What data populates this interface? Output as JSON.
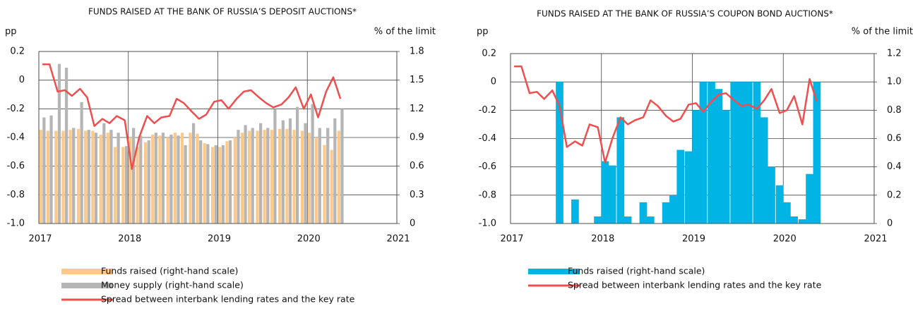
{
  "chart_data": [
    {
      "type": "combo",
      "title": "FUNDS RAISED AT THE BANK OF RUSSIA’S DEPOSIT AUCTIONS*",
      "y_label": "pp",
      "y2_label": "% of the limit",
      "x": [
        2017.04,
        2017.12,
        2017.21,
        2017.29,
        2017.37,
        2017.46,
        2017.54,
        2017.62,
        2017.71,
        2017.79,
        2017.87,
        2017.96,
        2018.04,
        2018.12,
        2018.21,
        2018.29,
        2018.37,
        2018.46,
        2018.54,
        2018.62,
        2018.71,
        2018.79,
        2018.87,
        2018.96,
        2019.04,
        2019.12,
        2019.21,
        2019.29,
        2019.37,
        2019.46,
        2019.54,
        2019.62,
        2019.71,
        2019.79,
        2019.87,
        2019.96,
        2020.04,
        2020.12,
        2020.21,
        2020.29,
        2020.37
      ],
      "xlim": [
        2017,
        2021
      ],
      "xticks": [
        2017,
        2018,
        2019,
        2020,
        2021
      ],
      "ylim": [
        -1,
        0.2
      ],
      "yticks": [
        0.2,
        0,
        -0.2,
        -0.4,
        -0.6,
        -0.8,
        {
          "value": -1,
          "label": "-1.0"
        }
      ],
      "y2lim": [
        0,
        1.8
      ],
      "y2ticks": [
        1.8,
        1.5,
        1.2,
        0.9,
        0.6,
        0.3,
        0
      ],
      "grid": true,
      "series": [
        {
          "name": "Funds raised (right-hand scale)",
          "type": "bar",
          "axis": "y2",
          "color": "#fdc98a",
          "values": [
            0.98,
            0.97,
            0.97,
            0.97,
            0.98,
            0.99,
            0.97,
            0.97,
            0.93,
            0.95,
            0.8,
            0.8,
            0.9,
            0.8,
            0.85,
            0.93,
            0.92,
            0.9,
            0.95,
            0.95,
            0.95,
            0.94,
            0.84,
            0.8,
            0.8,
            0.86,
            0.9,
            0.95,
            0.97,
            0.97,
            0.98,
            0.98,
            0.99,
            0.99,
            0.98,
            0.97,
            0.95,
            0.9,
            0.82,
            0.77,
            0.97
          ]
        },
        {
          "name": "Money supply (right-hand scale)",
          "type": "bar",
          "axis": "y2",
          "color": "#b5b5b5",
          "values": [
            1.11,
            1.13,
            1.67,
            1.63,
            1.0,
            1.27,
            0.98,
            0.95,
            1.05,
            0.98,
            0.95,
            0.81,
            1.0,
            0.92,
            0.87,
            0.95,
            0.95,
            0.93,
            0.92,
            0.82,
            1.05,
            0.87,
            0.83,
            0.82,
            0.82,
            0.87,
            0.98,
            1.03,
            1.0,
            1.05,
            1.0,
            1.2,
            1.08,
            1.1,
            1.22,
            1.05,
            1.25,
            1.0,
            1.0,
            1.1,
            1.2
          ]
        },
        {
          "name": "Spread between interbank lending rates and the key rate",
          "type": "line",
          "axis": "y",
          "color": "#f04e4e",
          "values": [
            0.11,
            0.11,
            -0.08,
            -0.07,
            -0.11,
            -0.06,
            -0.12,
            -0.32,
            -0.27,
            -0.3,
            -0.25,
            -0.28,
            -0.62,
            -0.4,
            -0.25,
            -0.3,
            -0.26,
            -0.25,
            -0.13,
            -0.16,
            -0.22,
            -0.27,
            -0.24,
            -0.15,
            -0.14,
            -0.2,
            -0.13,
            -0.08,
            -0.07,
            -0.12,
            -0.16,
            -0.19,
            -0.17,
            -0.12,
            -0.05,
            -0.2,
            -0.1,
            -0.26,
            -0.08,
            0.02,
            -0.13
          ]
        }
      ]
    },
    {
      "type": "combo",
      "title": "FUNDS RAISED AT THE BANK OF RUSSIA’S COUPON BOND AUCTIONS*",
      "y_label": "pp",
      "y2_label": "% of the limit",
      "x": [
        2017.04,
        2017.12,
        2017.21,
        2017.29,
        2017.37,
        2017.46,
        2017.54,
        2017.62,
        2017.71,
        2017.79,
        2017.87,
        2017.96,
        2018.04,
        2018.12,
        2018.21,
        2018.29,
        2018.37,
        2018.46,
        2018.54,
        2018.62,
        2018.71,
        2018.79,
        2018.87,
        2018.96,
        2019.04,
        2019.12,
        2019.21,
        2019.29,
        2019.37,
        2019.46,
        2019.54,
        2019.62,
        2019.71,
        2019.79,
        2019.87,
        2019.96,
        2020.04,
        2020.12,
        2020.21,
        2020.29,
        2020.37
      ],
      "xlim": [
        2017,
        2021
      ],
      "xticks": [
        2017,
        2018,
        2019,
        2020,
        2021
      ],
      "ylim": [
        -1,
        0.2
      ],
      "yticks": [
        0.2,
        0,
        -0.2,
        -0.4,
        -0.6,
        -0.8,
        {
          "value": -1,
          "label": "-1.0"
        }
      ],
      "y2lim": [
        0,
        1.2
      ],
      "y2ticks": [
        1.2,
        {
          "value": 1,
          "label": "1.0"
        },
        0.8,
        0.6,
        0.4,
        0.2,
        0
      ],
      "grid": true,
      "series": [
        {
          "name": "Funds raised (right-hand scale)",
          "type": "bar",
          "axis": "y2",
          "color": "#00b5e6",
          "values": [
            0,
            0,
            0,
            0,
            0,
            0,
            1.0,
            0,
            0.17,
            0,
            0,
            0.05,
            0.44,
            0.41,
            0.75,
            0.05,
            0,
            0.15,
            0.05,
            0,
            0.15,
            0.2,
            0.52,
            0.51,
            0.8,
            1.0,
            1.0,
            0.95,
            0.8,
            1.0,
            1.0,
            1.0,
            1.0,
            0.75,
            0.4,
            0.27,
            0.15,
            0.05,
            0.03,
            0.35,
            1.0
          ]
        },
        {
          "name": "Spread between interbank lending rates and the key rate",
          "type": "line",
          "axis": "y",
          "color": "#f04e4e",
          "values": [
            0.11,
            0.11,
            -0.08,
            -0.07,
            -0.12,
            -0.06,
            -0.17,
            -0.46,
            -0.42,
            -0.45,
            -0.3,
            -0.32,
            -0.57,
            -0.4,
            -0.25,
            -0.3,
            -0.27,
            -0.25,
            -0.13,
            -0.17,
            -0.24,
            -0.28,
            -0.26,
            -0.16,
            -0.15,
            -0.21,
            -0.14,
            -0.09,
            -0.08,
            -0.13,
            -0.17,
            -0.16,
            -0.19,
            -0.13,
            -0.05,
            -0.22,
            -0.2,
            -0.1,
            -0.3,
            0.02,
            -0.14
          ]
        }
      ]
    }
  ]
}
